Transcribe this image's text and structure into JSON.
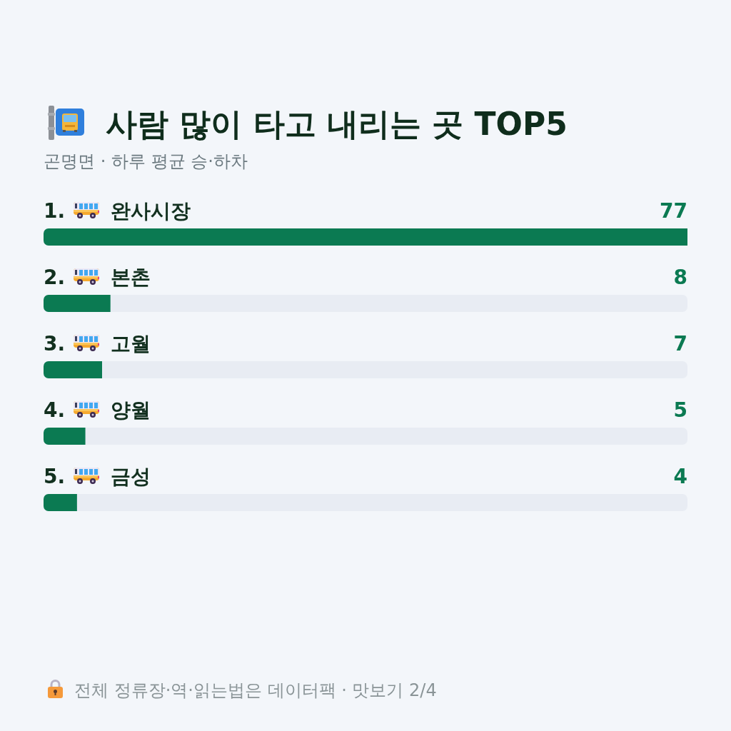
{
  "chart_data": {
    "type": "bar",
    "orientation": "horizontal",
    "title": "사람 많이 타고 내리는 곳 TOP5",
    "subtitle": "곤명면 · 하루 평균 승·하차",
    "categories": [
      "1. 완사시장",
      "2. 본촌",
      "3. 고월",
      "4. 양월",
      "5. 금성"
    ],
    "values": [
      77,
      8,
      7,
      5,
      4
    ],
    "color": "#0b7a52",
    "xlim": [
      0,
      77
    ],
    "data_labels": true,
    "tick_labels": "y",
    "annotations": [
      "전체 정류장·역·읽는법은 데이터팩 · 맛보기 2/4"
    ]
  }
}
